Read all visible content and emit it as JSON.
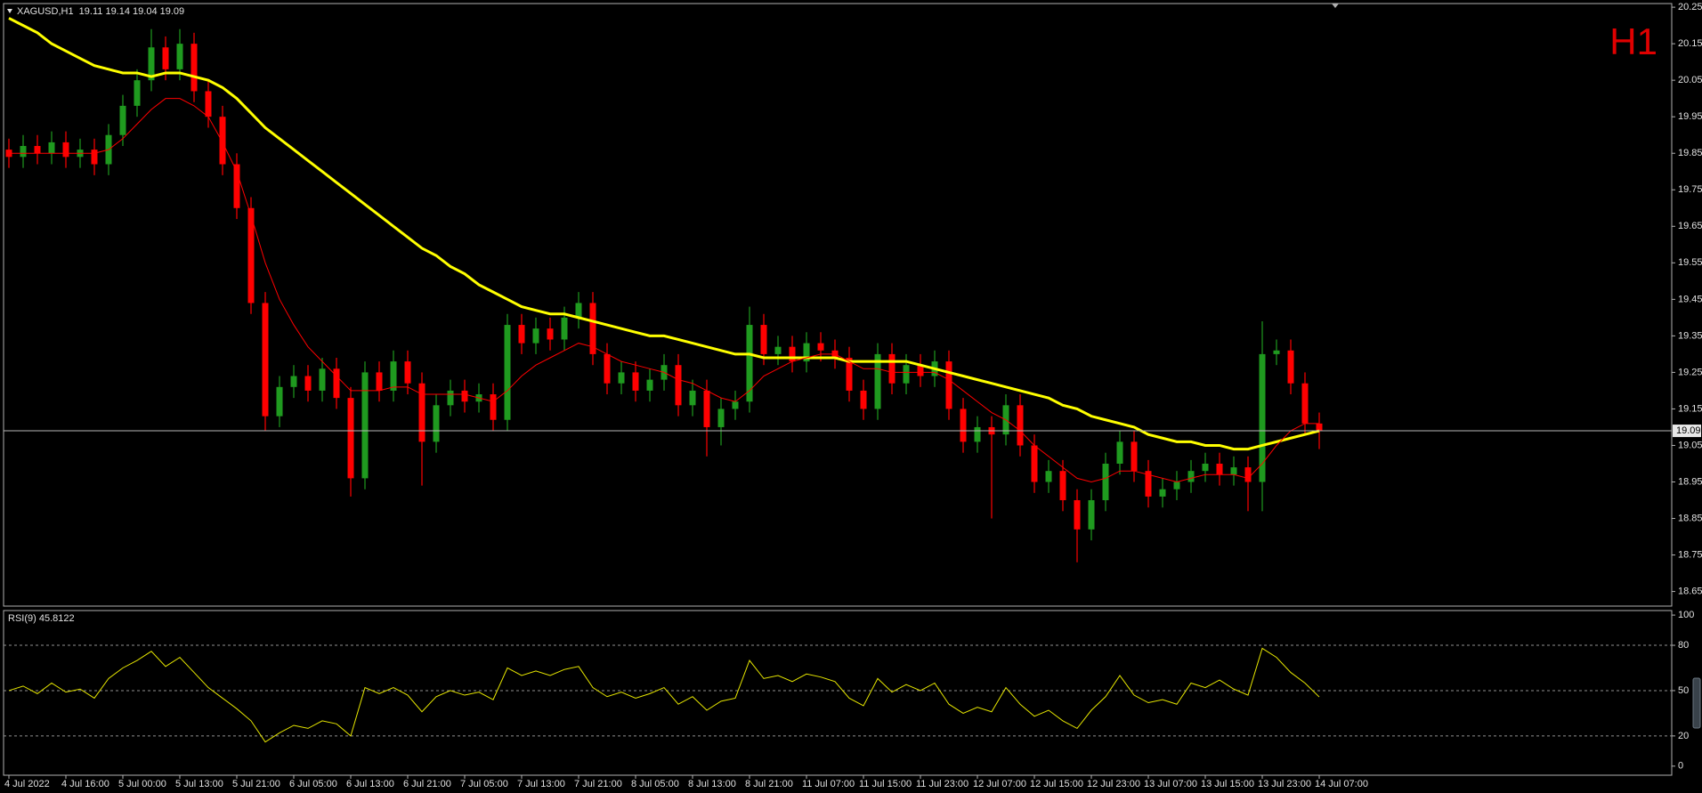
{
  "chart_data": [
    {
      "type": "candlestick",
      "title": "XAGUSD,H1  19.11 19.14 19.04 19.09",
      "timeframe_label": "H1",
      "categories": [
        "4 Jul 2022",
        null,
        null,
        null,
        "4 Jul 16:00",
        null,
        null,
        null,
        "5 Jul 00:00",
        null,
        null,
        null,
        "5 Jul 13:00",
        null,
        null,
        null,
        "5 Jul 21:00",
        null,
        null,
        null,
        "6 Jul 05:00",
        null,
        null,
        null,
        "6 Jul 13:00",
        null,
        null,
        null,
        "6 Jul 21:00",
        null,
        null,
        null,
        "7 Jul 05:00",
        null,
        null,
        null,
        "7 Jul 13:00",
        null,
        null,
        null,
        "7 Jul 21:00",
        null,
        null,
        null,
        "8 Jul 05:00",
        null,
        null,
        null,
        "8 Jul 13:00",
        null,
        null,
        null,
        "8 Jul 21:00",
        null,
        null,
        null,
        "11 Jul 07:00",
        null,
        null,
        null,
        "11 Jul 15:00",
        null,
        null,
        null,
        "11 Jul 23:00",
        null,
        null,
        null,
        "12 Jul 07:00",
        null,
        null,
        null,
        "12 Jul 15:00",
        null,
        null,
        null,
        "12 Jul 23:00",
        null,
        null,
        null,
        "13 Jul 07:00",
        null,
        null,
        null,
        "13 Jul 15:00",
        null,
        null,
        null,
        "13 Jul 23:00",
        null,
        null,
        null,
        "14 Jul 07:00"
      ],
      "ohlc": [
        [
          19.86,
          19.89,
          19.81,
          19.84
        ],
        [
          19.84,
          19.9,
          19.81,
          19.87
        ],
        [
          19.87,
          19.9,
          19.82,
          19.85
        ],
        [
          19.85,
          19.91,
          19.82,
          19.88
        ],
        [
          19.88,
          19.91,
          19.81,
          19.84
        ],
        [
          19.84,
          19.89,
          19.81,
          19.86
        ],
        [
          19.86,
          19.89,
          19.79,
          19.82
        ],
        [
          19.82,
          19.93,
          19.79,
          19.9
        ],
        [
          19.9,
          20.01,
          19.87,
          19.98
        ],
        [
          19.98,
          20.08,
          19.95,
          20.05
        ],
        [
          20.05,
          20.19,
          20.02,
          20.14
        ],
        [
          20.14,
          20.17,
          20.05,
          20.08
        ],
        [
          20.08,
          20.19,
          20.05,
          20.15
        ],
        [
          20.15,
          20.18,
          19.99,
          20.02
        ],
        [
          20.02,
          20.05,
          19.92,
          19.95
        ],
        [
          19.95,
          19.98,
          19.79,
          19.82
        ],
        [
          19.82,
          19.85,
          19.67,
          19.7
        ],
        [
          19.7,
          19.73,
          19.41,
          19.44
        ],
        [
          19.44,
          19.47,
          19.09,
          19.13
        ],
        [
          19.13,
          19.24,
          19.1,
          19.21
        ],
        [
          19.21,
          19.27,
          19.18,
          19.24
        ],
        [
          19.24,
          19.27,
          19.17,
          19.2
        ],
        [
          19.2,
          19.29,
          19.17,
          19.26
        ],
        [
          19.26,
          19.29,
          19.15,
          19.18
        ],
        [
          19.18,
          19.21,
          18.91,
          18.96
        ],
        [
          18.96,
          19.28,
          18.93,
          19.25
        ],
        [
          19.25,
          19.28,
          19.17,
          19.2
        ],
        [
          19.2,
          19.31,
          19.17,
          19.28
        ],
        [
          19.28,
          19.31,
          19.19,
          19.22
        ],
        [
          19.22,
          19.25,
          18.94,
          19.06
        ],
        [
          19.06,
          19.19,
          19.03,
          19.16
        ],
        [
          19.16,
          19.23,
          19.13,
          19.2
        ],
        [
          19.2,
          19.23,
          19.14,
          19.17
        ],
        [
          19.17,
          19.22,
          19.14,
          19.19
        ],
        [
          19.19,
          19.22,
          19.09,
          19.12
        ],
        [
          19.12,
          19.41,
          19.09,
          19.38
        ],
        [
          19.38,
          19.41,
          19.3,
          19.33
        ],
        [
          19.33,
          19.4,
          19.3,
          19.37
        ],
        [
          19.37,
          19.4,
          19.31,
          19.34
        ],
        [
          19.34,
          19.43,
          19.31,
          19.4
        ],
        [
          19.4,
          19.47,
          19.37,
          19.44
        ],
        [
          19.44,
          19.47,
          19.27,
          19.3
        ],
        [
          19.3,
          19.33,
          19.19,
          19.22
        ],
        [
          19.22,
          19.28,
          19.19,
          19.25
        ],
        [
          19.25,
          19.28,
          19.17,
          19.2
        ],
        [
          19.2,
          19.26,
          19.17,
          19.23
        ],
        [
          19.23,
          19.3,
          19.2,
          19.27
        ],
        [
          19.27,
          19.3,
          19.13,
          19.16
        ],
        [
          19.16,
          19.23,
          19.13,
          19.2
        ],
        [
          19.2,
          19.23,
          19.02,
          19.1
        ],
        [
          19.1,
          19.18,
          19.05,
          19.15
        ],
        [
          19.15,
          19.2,
          19.12,
          19.17
        ],
        [
          19.17,
          19.43,
          19.14,
          19.38
        ],
        [
          19.38,
          19.41,
          19.27,
          19.3
        ],
        [
          19.3,
          19.35,
          19.27,
          19.32
        ],
        [
          19.32,
          19.35,
          19.25,
          19.28
        ],
        [
          19.28,
          19.36,
          19.25,
          19.33
        ],
        [
          19.33,
          19.36,
          19.28,
          19.31
        ],
        [
          19.31,
          19.34,
          19.26,
          19.29
        ],
        [
          19.29,
          19.32,
          19.17,
          19.2
        ],
        [
          19.2,
          19.23,
          19.12,
          19.15
        ],
        [
          19.15,
          19.33,
          19.12,
          19.3
        ],
        [
          19.3,
          19.33,
          19.19,
          19.22
        ],
        [
          19.22,
          19.3,
          19.19,
          19.27
        ],
        [
          19.27,
          19.3,
          19.21,
          19.24
        ],
        [
          19.24,
          19.31,
          19.21,
          19.28
        ],
        [
          19.28,
          19.31,
          19.12,
          19.15
        ],
        [
          19.15,
          19.18,
          19.03,
          19.06
        ],
        [
          19.06,
          19.13,
          19.03,
          19.1
        ],
        [
          19.1,
          19.13,
          18.85,
          19.08
        ],
        [
          19.08,
          19.19,
          19.05,
          19.16
        ],
        [
          19.16,
          19.19,
          19.02,
          19.05
        ],
        [
          19.05,
          19.08,
          18.92,
          18.95
        ],
        [
          18.95,
          19.01,
          18.92,
          18.98
        ],
        [
          18.98,
          19.01,
          18.87,
          18.9
        ],
        [
          18.9,
          18.93,
          18.73,
          18.82
        ],
        [
          18.82,
          18.93,
          18.79,
          18.9
        ],
        [
          18.9,
          19.03,
          18.87,
          19.0
        ],
        [
          19.0,
          19.09,
          18.97,
          19.06
        ],
        [
          19.06,
          19.09,
          18.95,
          18.98
        ],
        [
          18.98,
          19.01,
          18.88,
          18.91
        ],
        [
          18.91,
          18.96,
          18.88,
          18.93
        ],
        [
          18.93,
          18.98,
          18.9,
          18.95
        ],
        [
          18.95,
          19.01,
          18.92,
          18.98
        ],
        [
          18.98,
          19.03,
          18.95,
          19.0
        ],
        [
          19.0,
          19.03,
          18.94,
          18.97
        ],
        [
          18.97,
          19.02,
          18.94,
          18.99
        ],
        [
          18.99,
          19.02,
          18.87,
          18.95
        ],
        [
          18.95,
          19.39,
          18.87,
          19.3
        ],
        [
          19.3,
          19.34,
          19.27,
          19.31
        ],
        [
          19.31,
          19.34,
          19.19,
          19.22
        ],
        [
          19.22,
          19.25,
          19.08,
          19.11
        ],
        [
          19.11,
          19.14,
          19.04,
          19.09
        ]
      ],
      "up_color": "#1f9a1f",
      "down_color": "#ff0000",
      "series": [
        {
          "color": "#ffff00",
          "width": 3,
          "values": [
            20.22,
            20.2,
            20.18,
            20.15,
            20.13,
            20.11,
            20.09,
            20.08,
            20.07,
            20.07,
            20.06,
            20.07,
            20.07,
            20.06,
            20.05,
            20.03,
            20.0,
            19.96,
            19.92,
            19.89,
            19.86,
            19.83,
            19.8,
            19.77,
            19.74,
            19.71,
            19.68,
            19.65,
            19.62,
            19.59,
            19.57,
            19.54,
            19.52,
            19.49,
            19.47,
            19.45,
            19.43,
            19.42,
            19.41,
            19.41,
            19.4,
            19.39,
            19.38,
            19.37,
            19.36,
            19.35,
            19.35,
            19.34,
            19.33,
            19.32,
            19.31,
            19.3,
            19.3,
            19.29,
            19.29,
            19.29,
            19.29,
            19.29,
            19.29,
            19.28,
            19.28,
            19.28,
            19.28,
            19.28,
            19.27,
            19.26,
            19.25,
            19.24,
            19.23,
            19.22,
            19.21,
            19.2,
            19.19,
            19.18,
            19.16,
            19.15,
            19.13,
            19.12,
            19.11,
            19.1,
            19.08,
            19.07,
            19.06,
            19.06,
            19.05,
            19.05,
            19.04,
            19.04,
            19.05,
            19.06,
            19.07,
            19.08,
            19.09
          ]
        },
        {
          "color": "#ff0000",
          "width": 1,
          "values": [
            19.85,
            19.85,
            19.85,
            19.85,
            19.85,
            19.85,
            19.85,
            19.86,
            19.89,
            19.93,
            19.97,
            20.0,
            20.0,
            19.98,
            19.95,
            19.88,
            19.8,
            19.68,
            19.55,
            19.45,
            19.38,
            19.32,
            19.28,
            19.24,
            19.2,
            19.2,
            19.2,
            19.21,
            19.21,
            19.19,
            19.19,
            19.19,
            19.19,
            19.18,
            19.17,
            19.2,
            19.24,
            19.27,
            19.29,
            19.31,
            19.33,
            19.32,
            19.3,
            19.28,
            19.27,
            19.26,
            19.25,
            19.23,
            19.22,
            19.2,
            19.18,
            19.17,
            19.2,
            19.24,
            19.26,
            19.28,
            19.29,
            19.3,
            19.3,
            19.28,
            19.26,
            19.26,
            19.25,
            19.25,
            19.25,
            19.25,
            19.23,
            19.2,
            19.17,
            19.14,
            19.12,
            19.09,
            19.05,
            19.02,
            18.99,
            18.96,
            18.95,
            18.96,
            18.98,
            18.98,
            18.97,
            18.96,
            18.95,
            18.96,
            18.97,
            18.97,
            18.97,
            18.96,
            19.0,
            19.05,
            19.09,
            19.11,
            19.11
          ]
        }
      ],
      "last_price": 19.09,
      "ylim": [
        18.61,
        20.26
      ],
      "yticks": [
        20.25,
        20.15,
        20.05,
        19.95,
        19.85,
        19.75,
        19.65,
        19.55,
        19.45,
        19.35,
        19.25,
        19.15,
        19.05,
        18.95,
        18.85,
        18.75,
        18.65
      ],
      "grid": false
    },
    {
      "type": "line",
      "title": "RSI(9) 45.8122",
      "color": "#e6e600",
      "values": [
        50,
        53,
        48,
        55,
        49,
        51,
        45,
        58,
        65,
        70,
        76,
        66,
        72,
        62,
        52,
        45,
        38,
        30,
        16,
        22,
        27,
        25,
        30,
        28,
        20,
        52,
        48,
        52,
        47,
        36,
        46,
        50,
        47,
        49,
        44,
        65,
        60,
        63,
        60,
        64,
        66,
        52,
        46,
        49,
        45,
        48,
        52,
        41,
        46,
        37,
        43,
        45,
        70,
        58,
        60,
        56,
        61,
        59,
        56,
        45,
        40,
        58,
        49,
        54,
        50,
        55,
        41,
        35,
        39,
        36,
        52,
        41,
        33,
        37,
        30,
        25,
        37,
        46,
        60,
        47,
        42,
        44,
        41,
        55,
        52,
        57,
        51,
        47,
        78,
        72,
        62,
        55,
        45.8122
      ],
      "levels": [
        20,
        50,
        80
      ],
      "ylim": [
        -6,
        103
      ],
      "yticks": [
        0,
        20,
        50,
        80,
        100
      ]
    }
  ]
}
